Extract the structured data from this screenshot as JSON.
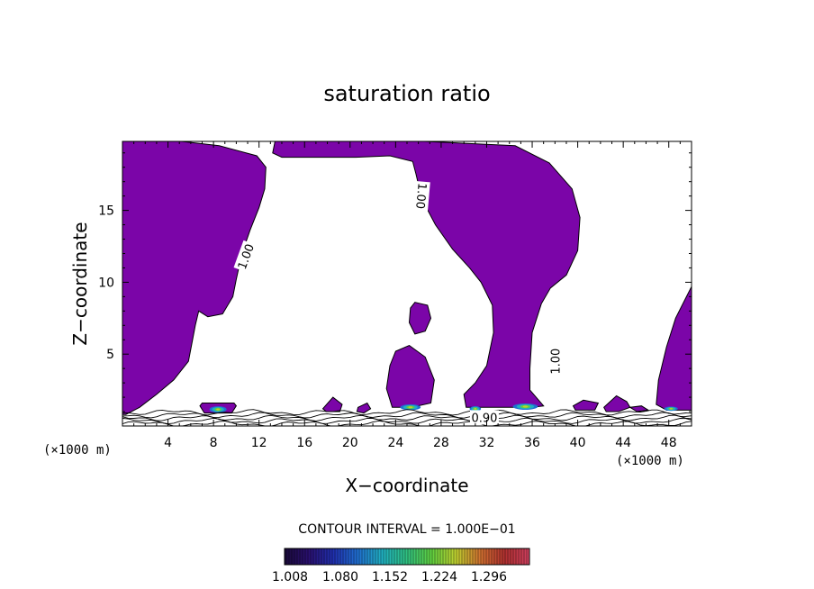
{
  "chart_data": {
    "type": "contour",
    "title": "saturation ratio",
    "xlabel": "X−coordinate",
    "ylabel": "Z−coordinate",
    "x_unit": "(×1000 m)",
    "y_unit": "(×1000 m)",
    "xlim": [
      0,
      50
    ],
    "ylim": [
      0,
      19.8
    ],
    "x_ticks": [
      4,
      8,
      12,
      16,
      20,
      24,
      28,
      32,
      36,
      40,
      44,
      48
    ],
    "x_tick_labels": [
      "4",
      "8",
      "12",
      "16",
      "20",
      "24",
      "28",
      "32",
      "36",
      "40",
      "44",
      "48"
    ],
    "y_ticks": [
      5,
      10,
      15
    ],
    "y_tick_labels": [
      "5",
      "10",
      "15"
    ],
    "contour_interval_text": "CONTOUR INTERVAL = 1.000E−01",
    "contour_labels": [
      {
        "text": "1.00",
        "x": 10.8,
        "z": 11.8,
        "angle": -70
      },
      {
        "text": "1.00",
        "x": 26.3,
        "z": 16.0,
        "angle": 95
      },
      {
        "text": "1.00",
        "x": 38.0,
        "z": 4.5,
        "angle": -90
      },
      {
        "text": "0.90",
        "x": 31.8,
        "z": 0.6,
        "angle": 0
      }
    ],
    "supersaturated_regions": [
      {
        "name": "left-column",
        "points": [
          [
            0,
            19.8
          ],
          [
            5.2,
            19.8
          ],
          [
            8.5,
            19.5
          ],
          [
            11.8,
            18.8
          ],
          [
            12.6,
            18.0
          ],
          [
            12.5,
            16.5
          ],
          [
            12.0,
            15.2
          ],
          [
            11.2,
            13.6
          ],
          [
            10.5,
            12.0
          ],
          [
            10.0,
            10.2
          ],
          [
            9.7,
            9.0
          ],
          [
            8.8,
            7.8
          ],
          [
            7.5,
            7.6
          ],
          [
            6.7,
            8.0
          ],
          [
            6.4,
            7.0
          ],
          [
            5.8,
            4.5
          ],
          [
            4.5,
            3.2
          ],
          [
            3.0,
            2.2
          ],
          [
            1.5,
            1.3
          ],
          [
            0.3,
            0.8
          ],
          [
            0,
            0.8
          ]
        ]
      },
      {
        "name": "central-column",
        "points": [
          [
            13.2,
            19.0
          ],
          [
            13.4,
            19.8
          ],
          [
            22.5,
            19.8
          ],
          [
            26.5,
            19.8
          ],
          [
            34.5,
            19.5
          ],
          [
            37.5,
            18.3
          ],
          [
            39.5,
            16.5
          ],
          [
            40.2,
            14.5
          ],
          [
            40.0,
            12.2
          ],
          [
            39.0,
            10.5
          ],
          [
            37.6,
            9.6
          ],
          [
            36.8,
            8.5
          ],
          [
            36.0,
            6.5
          ],
          [
            35.8,
            4.0
          ],
          [
            35.8,
            2.5
          ],
          [
            37.0,
            1.4
          ],
          [
            36.0,
            1.3
          ],
          [
            32.5,
            1.3
          ],
          [
            30.2,
            1.3
          ],
          [
            30.0,
            2.2
          ],
          [
            31.0,
            3.0
          ],
          [
            32.0,
            4.2
          ],
          [
            32.6,
            6.5
          ],
          [
            32.5,
            8.4
          ],
          [
            31.5,
            10.0
          ],
          [
            30.5,
            11.0
          ],
          [
            29.0,
            12.3
          ],
          [
            27.5,
            14.0
          ],
          [
            26.3,
            15.8
          ],
          [
            25.8,
            17.5
          ],
          [
            25.5,
            18.4
          ],
          [
            23.5,
            18.8
          ],
          [
            20.5,
            18.7
          ],
          [
            16.5,
            18.7
          ],
          [
            14.0,
            18.7
          ]
        ]
      },
      {
        "name": "blob-25",
        "points": [
          [
            23.5,
            4.2
          ],
          [
            24.0,
            5.2
          ],
          [
            25.2,
            5.6
          ],
          [
            26.6,
            4.8
          ],
          [
            27.4,
            3.2
          ],
          [
            27.1,
            1.6
          ],
          [
            25.4,
            1.3
          ],
          [
            23.7,
            1.3
          ],
          [
            23.2,
            2.6
          ]
        ]
      },
      {
        "name": "blob-26",
        "points": [
          [
            25.3,
            8.2
          ],
          [
            25.7,
            8.6
          ],
          [
            26.8,
            8.4
          ],
          [
            27.1,
            7.5
          ],
          [
            26.6,
            6.6
          ],
          [
            25.7,
            6.4
          ],
          [
            25.2,
            7.2
          ]
        ]
      },
      {
        "name": "right-column",
        "points": [
          [
            50,
            9.7
          ],
          [
            48.6,
            7.5
          ],
          [
            47.8,
            5.5
          ],
          [
            47.1,
            3.2
          ],
          [
            46.9,
            1.5
          ],
          [
            47.8,
            1.1
          ],
          [
            50,
            1.1
          ]
        ]
      },
      {
        "name": "patch-8",
        "points": [
          [
            6.8,
            1.4
          ],
          [
            7.0,
            1.6
          ],
          [
            9.8,
            1.6
          ],
          [
            10.0,
            1.4
          ],
          [
            9.6,
            0.9
          ],
          [
            7.2,
            0.9
          ]
        ]
      },
      {
        "name": "patch-18",
        "points": [
          [
            17.6,
            1.2
          ],
          [
            18.5,
            2.0
          ],
          [
            19.3,
            1.5
          ],
          [
            19.1,
            1.0
          ],
          [
            17.9,
            1.0
          ]
        ]
      },
      {
        "name": "patch-21",
        "points": [
          [
            20.7,
            1.3
          ],
          [
            21.5,
            1.6
          ],
          [
            21.8,
            1.2
          ],
          [
            21.2,
            0.9
          ],
          [
            20.6,
            1.0
          ]
        ]
      },
      {
        "name": "patch-39",
        "points": [
          [
            39.6,
            1.4
          ],
          [
            40.5,
            1.8
          ],
          [
            41.8,
            1.6
          ],
          [
            41.5,
            1.1
          ],
          [
            39.8,
            1.1
          ]
        ]
      },
      {
        "name": "patch-43",
        "points": [
          [
            42.3,
            1.3
          ],
          [
            43.4,
            2.1
          ],
          [
            44.3,
            1.7
          ],
          [
            44.6,
            1.3
          ],
          [
            43.6,
            1.0
          ],
          [
            42.5,
            1.0
          ]
        ]
      },
      {
        "name": "patch-45",
        "points": [
          [
            44.6,
            1.3
          ],
          [
            45.6,
            1.4
          ],
          [
            46.2,
            1.1
          ],
          [
            45.2,
            1.0
          ]
        ]
      }
    ],
    "high_value_spots": [
      {
        "x": 8.4,
        "z": 1.15,
        "rx": 0.75,
        "rz": 0.22
      },
      {
        "x": 25.3,
        "z": 1.3,
        "rx": 0.9,
        "rz": 0.2
      },
      {
        "x": 35.4,
        "z": 1.35,
        "rx": 1.1,
        "rz": 0.22
      },
      {
        "x": 31.0,
        "z": 1.2,
        "rx": 0.5,
        "rz": 0.18
      },
      {
        "x": 48.2,
        "z": 1.2,
        "rx": 0.6,
        "rz": 0.15
      }
    ],
    "colorbar": {
      "tick_labels": [
        "1.008",
        "1.080",
        "1.152",
        "1.224",
        "1.296"
      ],
      "colors": [
        "#1a0a3a",
        "#2a1070",
        "#2030b0",
        "#2070d0",
        "#20b0c0",
        "#30c080",
        "#60d040",
        "#c0d030",
        "#d07030",
        "#b03030",
        "#d04060"
      ]
    },
    "fill_color": "#7B05A8",
    "ground_line_color": "#000000"
  }
}
